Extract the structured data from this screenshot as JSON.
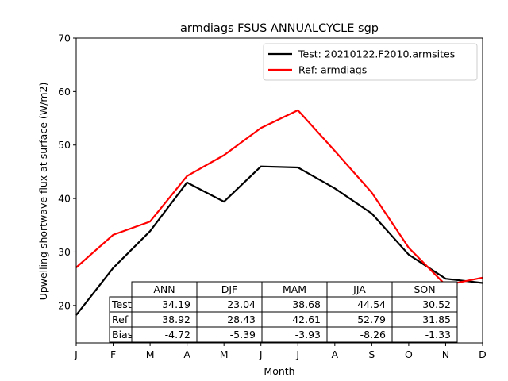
{
  "chart_data": {
    "type": "line",
    "title": "armdiags FSUS ANNUALCYCLE sgp",
    "xlabel": "Month",
    "ylabel": "Upwelling shortwave flux at surface (W/m2)",
    "ylim": [
      13,
      70
    ],
    "yticks": [
      20,
      30,
      40,
      50,
      60,
      70
    ],
    "categories": [
      "J",
      "F",
      "M",
      "A",
      "M",
      "J",
      "J",
      "A",
      "S",
      "O",
      "N",
      "D"
    ],
    "series": [
      {
        "name": "Test: 20210122.F2010.armsites",
        "color": "#000000",
        "values": [
          18.2,
          27.0,
          33.9,
          43.0,
          39.4,
          46.0,
          45.8,
          41.9,
          37.2,
          29.5,
          25.0,
          24.2
        ]
      },
      {
        "name": "Ref: armdiags",
        "color": "#ff0000",
        "values": [
          27.1,
          33.2,
          35.7,
          44.2,
          48.1,
          53.2,
          56.5,
          48.9,
          41.1,
          30.8,
          23.8,
          25.2
        ]
      }
    ],
    "legend_location": "upper right",
    "table": {
      "columns": [
        "ANN",
        "DJF",
        "MAM",
        "JJA",
        "SON"
      ],
      "rows": [
        {
          "label": "Test",
          "values": [
            "34.19",
            "23.04",
            "38.68",
            "44.54",
            "30.52"
          ]
        },
        {
          "label": "Ref",
          "values": [
            "38.92",
            "28.43",
            "42.61",
            "52.79",
            "31.85"
          ]
        },
        {
          "label": "Bias",
          "values": [
            "-4.72",
            "-5.39",
            "-3.93",
            "-8.26",
            "-1.33"
          ]
        }
      ]
    }
  }
}
